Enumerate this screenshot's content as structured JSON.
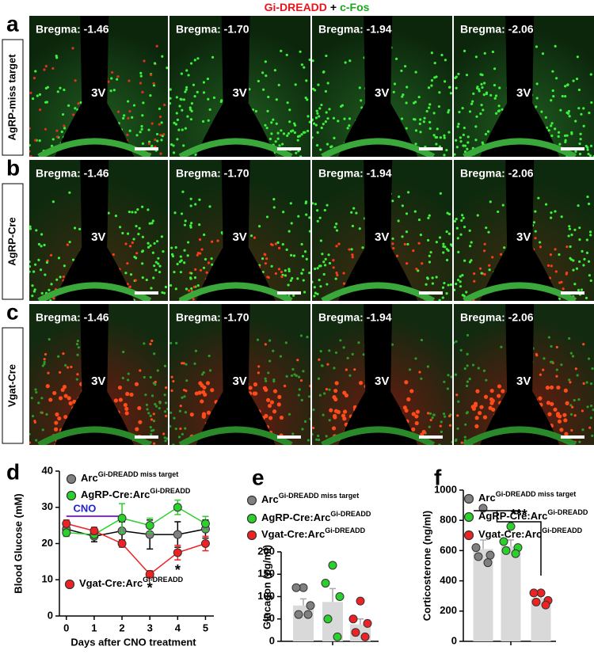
{
  "header": {
    "parts": [
      {
        "text": "Gi-DREADD",
        "color": "#e8141b"
      },
      {
        "text": "+",
        "color": "#000000"
      },
      {
        "text": "c-Fos",
        "color": "#1aa81a"
      }
    ]
  },
  "image_rows": [
    {
      "letter": "a",
      "label": "AgRP-miss target",
      "ventricle": "3V",
      "bregma": [
        "Bregma: -1.46",
        "Bregma: -1.70",
        "Bregma: -1.94",
        "Bregma: -2.06"
      ]
    },
    {
      "letter": "b",
      "label": "AgRP-Cre",
      "ventricle": "3V",
      "bregma": [
        "Bregma: -1.46",
        "Bregma: -1.70",
        "Bregma: -1.94",
        "Bregma: -2.06"
      ]
    },
    {
      "letter": "c",
      "label": "Vgat-Cre",
      "ventricle": "3V",
      "bregma": [
        "Bregma: -1.46",
        "Bregma: -1.70",
        "Bregma: -1.94",
        "Bregma: -2.06"
      ]
    }
  ],
  "chart_data": [
    {
      "letter": "d",
      "type": "line",
      "ylabel": "Blood Glucose (mM)",
      "xlabel": "Days after CNO treatment",
      "x": [
        0,
        1,
        2,
        3,
        4,
        5
      ],
      "xlim": [
        -0.25,
        5.3
      ],
      "xticks": [
        0,
        1,
        2,
        3,
        4,
        5
      ],
      "ylim": [
        0,
        40
      ],
      "yticks": [
        0,
        10,
        20,
        30,
        40
      ],
      "series": [
        {
          "name": "Arc",
          "name_superscript": "Gi-DREADD miss target",
          "color": "#808080",
          "values": [
            24,
            22,
            23.5,
            22.5,
            22.5,
            24
          ],
          "errors": [
            2,
            1.5,
            2.5,
            4,
            3.5,
            2.5
          ]
        },
        {
          "name": "AgRP-Cre:Arc",
          "name_superscript": "Gi-DREADD",
          "color": "#2bd12b",
          "values": [
            23,
            22.5,
            27,
            25,
            30,
            25.5
          ],
          "errors": [
            1,
            1,
            4,
            2,
            2,
            2
          ]
        },
        {
          "name": "Vgat-Cre:Arc",
          "name_superscript": "Gi-DREADD",
          "color": "#ee2222",
          "values": [
            25.5,
            23.5,
            20,
            11.5,
            17.5,
            20
          ],
          "errors": [
            1,
            1,
            1,
            1,
            2,
            2
          ]
        }
      ],
      "period": {
        "text": "CNO",
        "x": [
          0,
          2
        ],
        "color": "#8b2be2"
      },
      "annotations": [
        {
          "text": "*",
          "x": 3
        },
        {
          "text": "*",
          "x": 4
        }
      ]
    },
    {
      "letter": "e",
      "type": "bar_dots",
      "ylabel": "Glucagon (pg/ml)",
      "ylim": [
        0,
        200
      ],
      "yticks": [
        0,
        50,
        100,
        150,
        200
      ],
      "series": [
        {
          "name": "Arc",
          "name_superscript": "Gi-DREADD miss target",
          "color": "#808080",
          "mean": 80,
          "error": 15,
          "points": [
            120,
            120,
            80,
            60,
            60
          ]
        },
        {
          "name": "AgRP-Cre:Arc",
          "name_superscript": "Gi-DREADD",
          "color": "#2bd12b",
          "mean": 88,
          "error": 30,
          "points": [
            170,
            130,
            100,
            50,
            10
          ]
        },
        {
          "name": "Vgat-Cre:Arc",
          "name_superscript": "Gi-DREADD",
          "color": "#ee2222",
          "mean": 38,
          "error": 12,
          "points": [
            90,
            50,
            40,
            20,
            10
          ]
        }
      ]
    },
    {
      "letter": "f",
      "type": "bar_dots",
      "ylabel": "Corticosterone (ng/ml)",
      "ylim": [
        0,
        1000
      ],
      "yticks": [
        0,
        200,
        400,
        600,
        800,
        1000
      ],
      "series": [
        {
          "name": "Arc",
          "name_superscript": "Gi-DREADD miss target",
          "color": "#808080",
          "mean": 610,
          "error": 60,
          "points": [
            880,
            620,
            570,
            560,
            520
          ]
        },
        {
          "name": "AgRP-Cre:Arc",
          "name_superscript": "Gi-DREADD",
          "color": "#2bd12b",
          "mean": 630,
          "error": 40,
          "points": [
            760,
            660,
            620,
            600,
            580
          ]
        },
        {
          "name": "Vgat-Cre:Arc",
          "name_superscript": "Gi-DREADD",
          "color": "#ee2222",
          "mean": 285,
          "error": 20,
          "points": [
            320,
            320,
            270,
            260,
            240
          ]
        }
      ],
      "annotations": [
        {
          "text": "***"
        }
      ]
    }
  ]
}
